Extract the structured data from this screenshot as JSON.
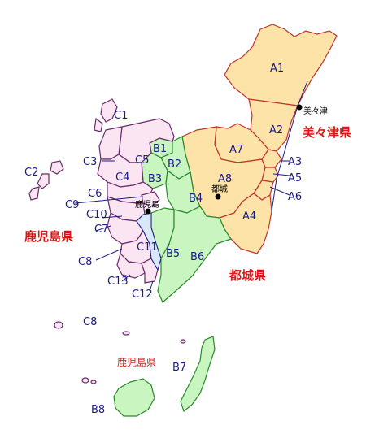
{
  "prefectures": {
    "miyazaki": "美々津県",
    "miyakonojo": "都城県",
    "kagoshima_main": "鹿児島県",
    "kagoshima_islands": "鹿児島県"
  },
  "cities": {
    "mimitsu": "美々津",
    "miyakonojo": "都城",
    "kagoshima": "鹿児島"
  },
  "regions": {
    "A1": "A1",
    "A2": "A2",
    "A3": "A3",
    "A4": "A4",
    "A5": "A5",
    "A6": "A6",
    "A7": "A7",
    "A8": "A8",
    "B1": "B1",
    "B2": "B2",
    "B3": "B3",
    "B4": "B4",
    "B5": "B5",
    "B6": "B6",
    "B7": "B7",
    "B8": "B8",
    "C1": "C1",
    "C2": "C2",
    "C3": "C3",
    "C4": "C4",
    "C5": "C5",
    "C6": "C6",
    "C7": "C7",
    "C8": "C8",
    "C8b": "C8",
    "C9": "C9",
    "C10": "C10",
    "C11": "C11",
    "C12": "C12",
    "C13": "C13"
  },
  "colors": {
    "group_a": "#fde3a7",
    "group_b": "#c8f5c0",
    "group_c": "#fbe5f3",
    "labels": "#1b1b8a",
    "prefecture_labels": "#d81818"
  }
}
